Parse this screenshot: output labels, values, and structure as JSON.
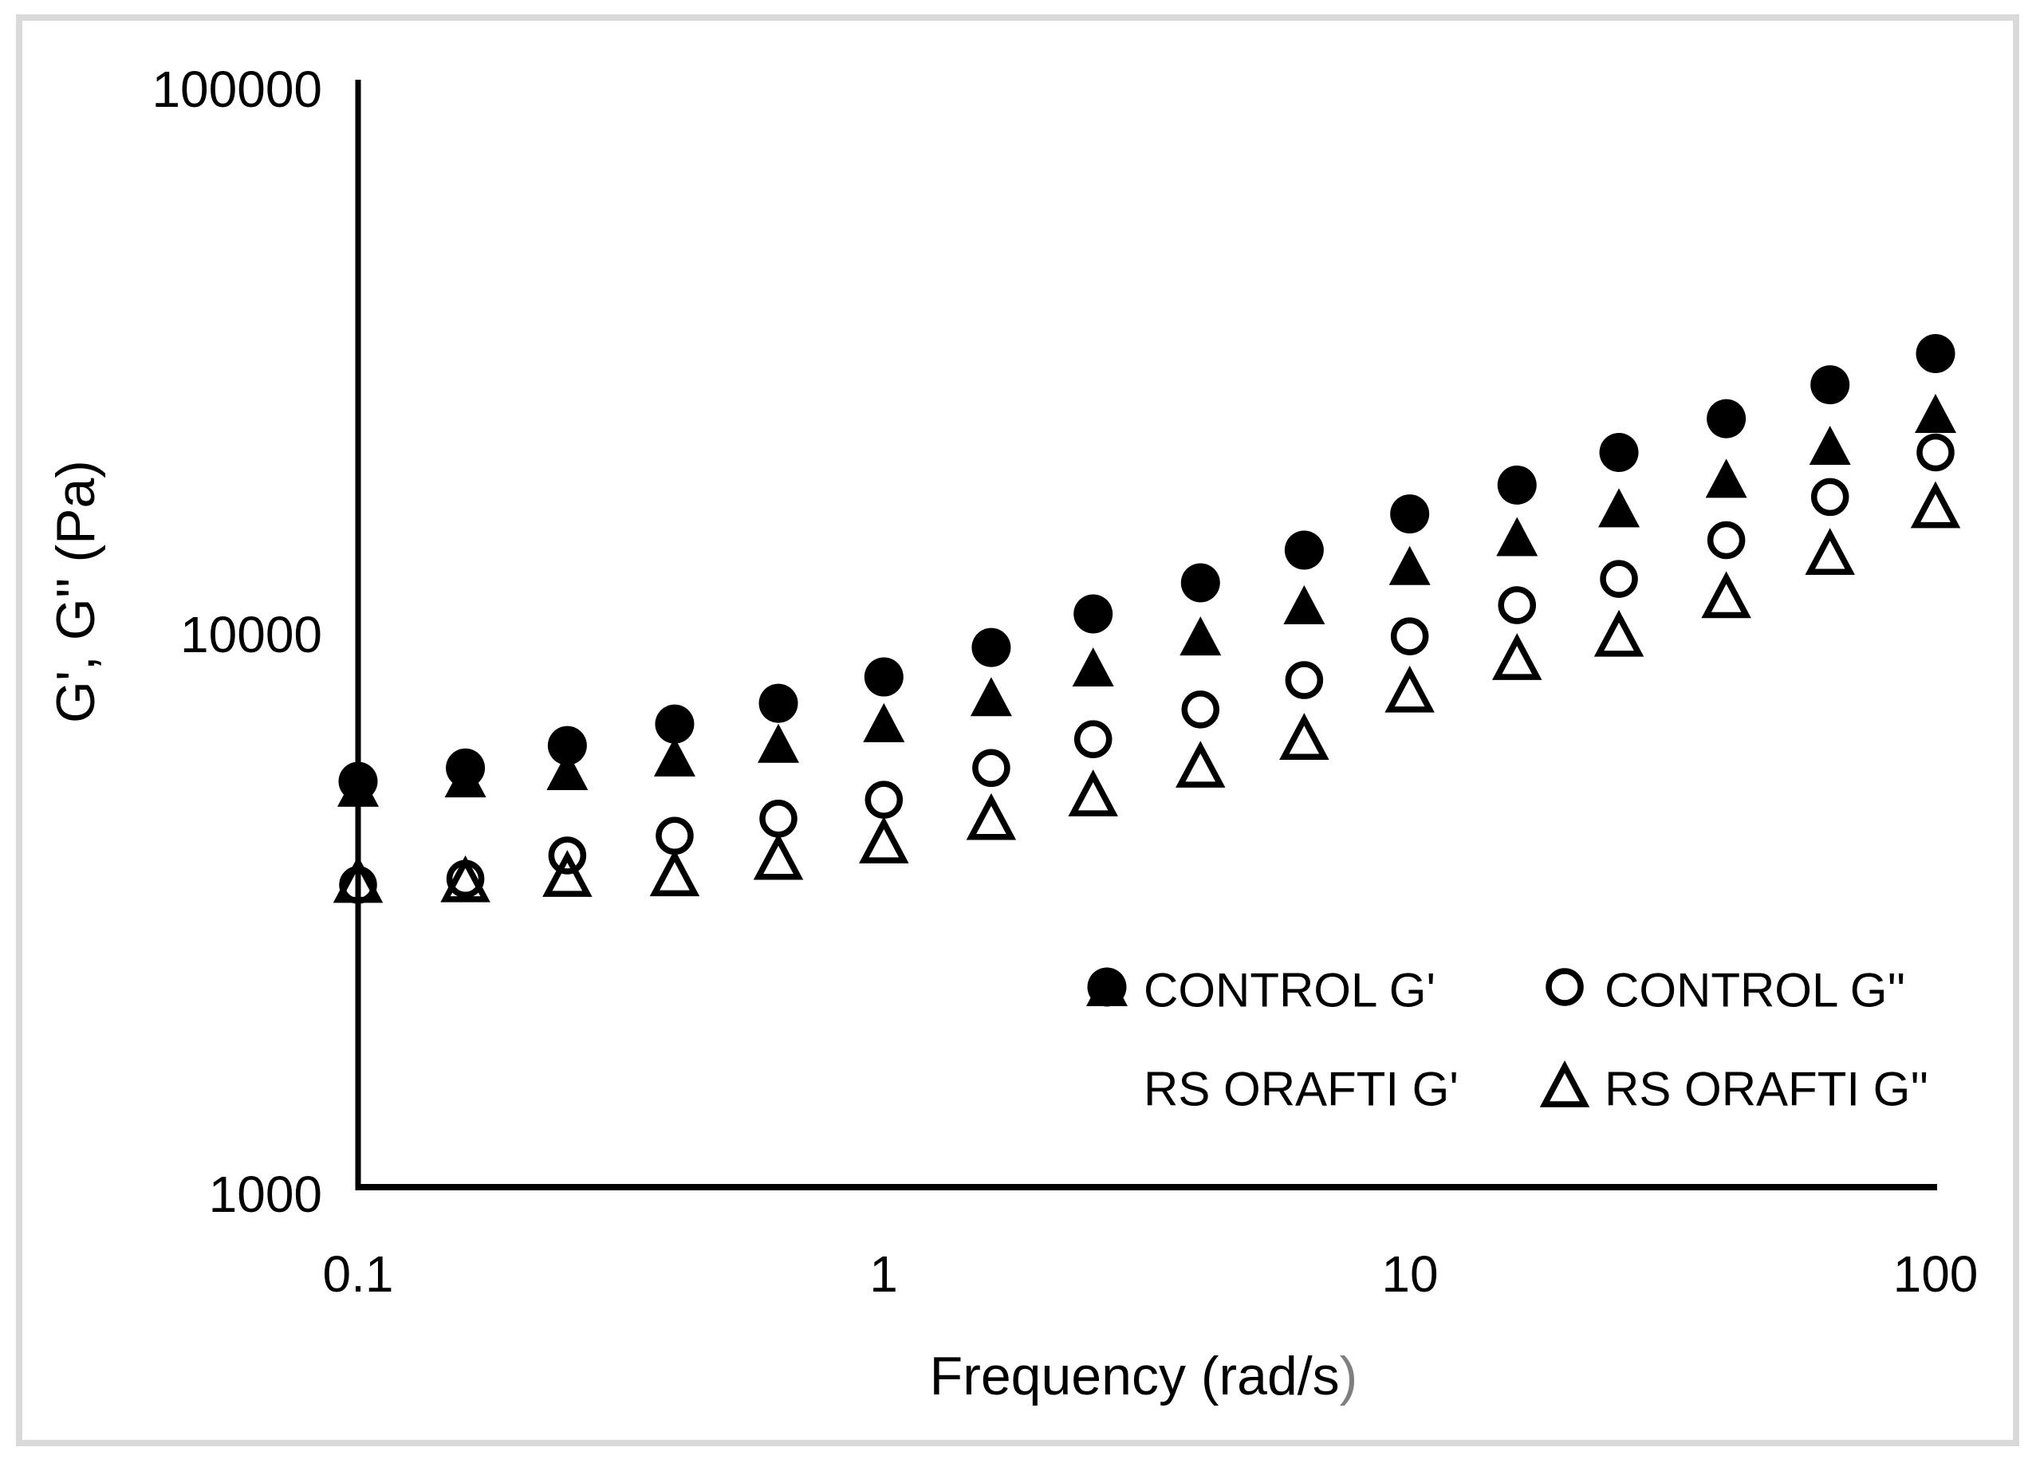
{
  "figure": {
    "colors": {
      "marker": "#000000",
      "text": "#000000",
      "border": "#d9d9d9",
      "xlabel_paren_gray": "#7f7f7f",
      "background": "#ffffff"
    }
  },
  "chart_data": {
    "type": "scatter",
    "title": "",
    "xlabel": "Frequency (rad/s)",
    "xlabel_render": {
      "black": "Frequency (rad/s",
      "gray": ")"
    },
    "ylabel": "G', G'' (Pa)",
    "x_scale": "log",
    "y_scale": "log",
    "xlim": [
      0.1,
      100
    ],
    "ylim": [
      1000,
      100000
    ],
    "grid": false,
    "legend_position": "inside-bottom-right 2x2",
    "x_tick_labels": [
      "0.1",
      "1",
      "10",
      "100"
    ],
    "x_tick_values": [
      0.1,
      1,
      10,
      100
    ],
    "y_tick_labels": [
      "1000",
      "10000",
      "100000"
    ],
    "y_tick_values": [
      1000,
      10000,
      100000
    ],
    "x": [
      0.1,
      0.16,
      0.25,
      0.4,
      0.63,
      1,
      1.6,
      2.5,
      4,
      6.3,
      10,
      16,
      25,
      40,
      63,
      100
    ],
    "series": [
      {
        "name": "CONTROL G'",
        "marker": "filled-circle",
        "values": [
          5440,
          5750,
          6310,
          6900,
          7520,
          8390,
          9480,
          10900,
          12400,
          14200,
          16500,
          18600,
          21300,
          24500,
          28200,
          32100
        ]
      },
      {
        "name": "CONTROL G''",
        "marker": "open-circle",
        "values": [
          3540,
          3630,
          4000,
          4340,
          4660,
          5040,
          5750,
          6480,
          7330,
          8280,
          9930,
          11300,
          12600,
          14800,
          17700,
          21300
        ]
      },
      {
        "name": "RS ORAFTI G'",
        "marker": "filled-triangle",
        "values": [
          5300,
          5510,
          5680,
          6010,
          6360,
          6930,
          7720,
          8730,
          9930,
          11300,
          13300,
          15000,
          16900,
          19100,
          21900,
          25000
        ]
      },
      {
        "name": "RS ORAFTI G''",
        "marker": "open-triangle",
        "values": [
          3590,
          3600,
          3680,
          3690,
          3950,
          4230,
          4660,
          5140,
          5790,
          6500,
          7910,
          9050,
          9970,
          11700,
          14000,
          17000
        ]
      }
    ]
  }
}
